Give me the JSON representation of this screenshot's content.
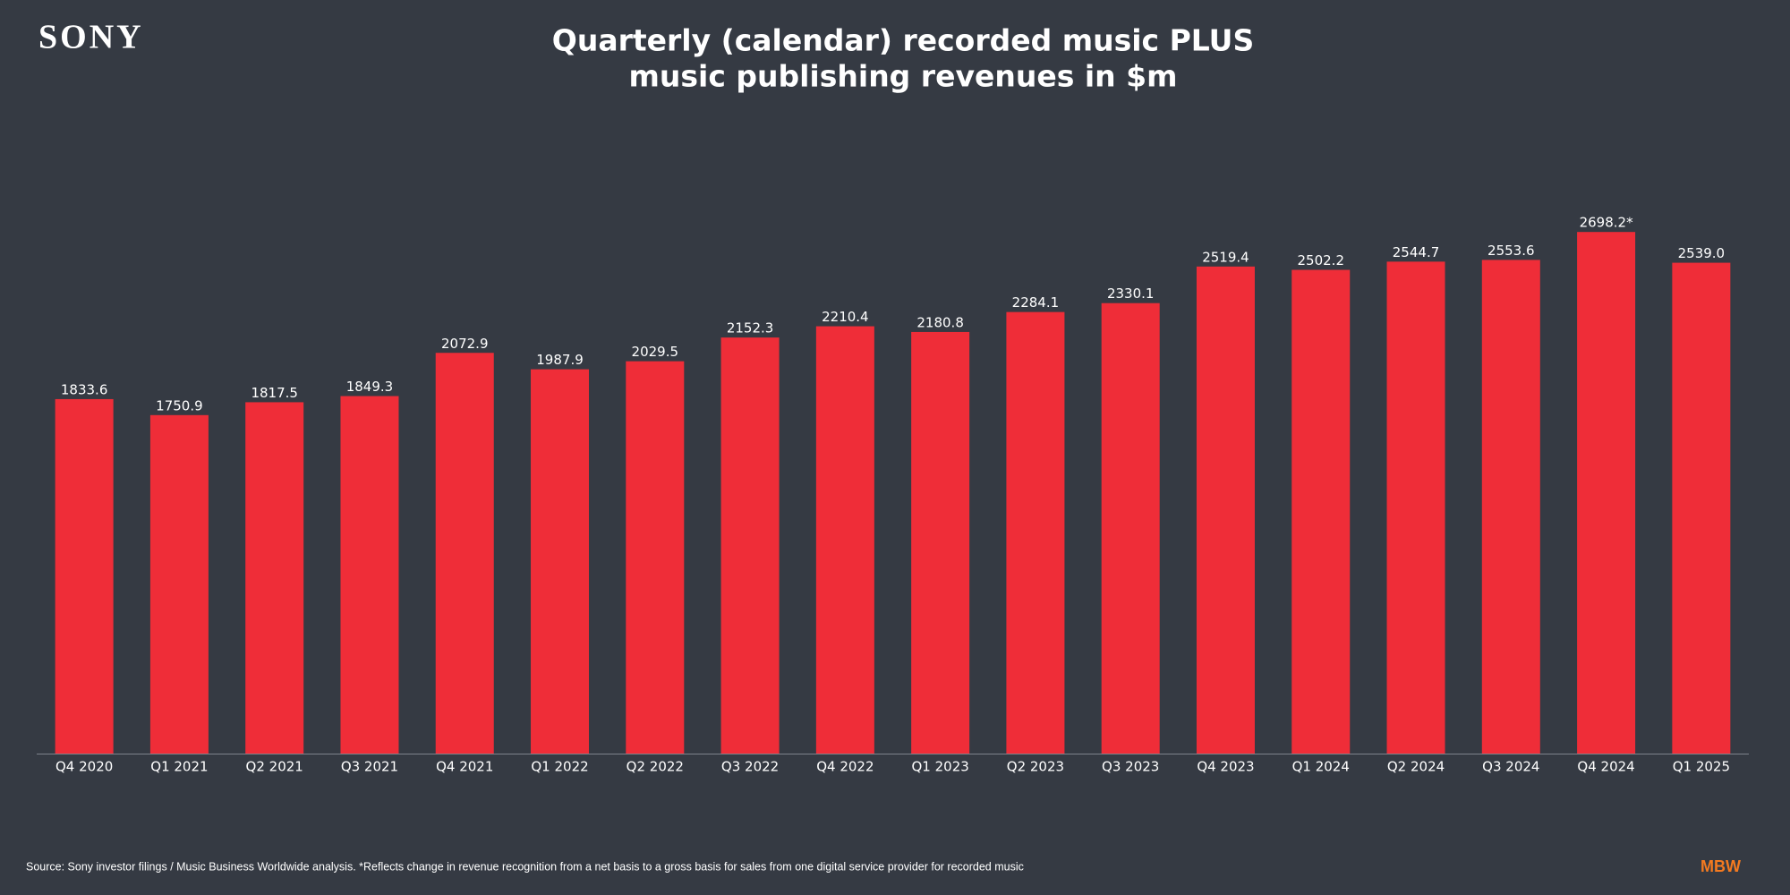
{
  "header": {
    "logo": "SONY"
  },
  "chart_data": {
    "type": "bar",
    "title": [
      "Quarterly (calendar) recorded music PLUS",
      "music publishing revenues in $m"
    ],
    "categories": [
      "Q4 2020",
      "Q1 2021",
      "Q2 2021",
      "Q3 2021",
      "Q4 2021",
      "Q1 2022",
      "Q2 2022",
      "Q3 2022",
      "Q4 2022",
      "Q1 2023",
      "Q2 2023",
      "Q3 2023",
      "Q4 2023",
      "Q1 2024",
      "Q2 2024",
      "Q3 2024",
      "Q4 2024",
      "Q1 2025"
    ],
    "values": [
      1833.6,
      1750.9,
      1817.5,
      1849.3,
      2072.9,
      1987.9,
      2029.5,
      2152.3,
      2210.4,
      2180.8,
      2284.1,
      2330.1,
      2519.4,
      2502.2,
      2544.7,
      2553.6,
      2698.2,
      2539.0
    ],
    "value_labels": [
      "1833.6",
      "1750.9",
      "1817.5",
      "1849.3",
      "2072.9",
      "1987.9",
      "2029.5",
      "2152.3",
      "2210.4",
      "2180.8",
      "2284.1",
      "2330.1",
      "2519.4",
      "2502.2",
      "2544.7",
      "2553.6",
      "2698.2*",
      "2539.0"
    ],
    "color": "#ef2d38",
    "ylim": [
      0,
      3000
    ]
  },
  "footer": {
    "source": "Source: Sony investor filings / Music Business Worldwide analysis. *Reflects change in revenue recognition from a net basis to a gross basis for sales from one digital service provider for recorded music",
    "brand": "MBW"
  }
}
